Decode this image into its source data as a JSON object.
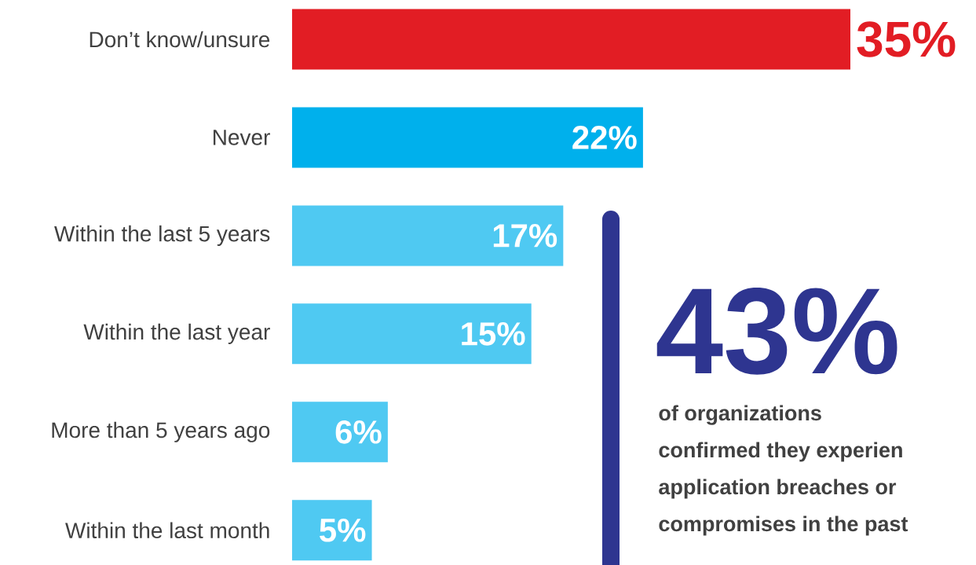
{
  "chart_data": {
    "type": "bar",
    "orientation": "horizontal",
    "categories": [
      "Don’t know/unsure",
      "Never",
      "Within the last 5 years",
      "Within the last year",
      "More than 5 years ago",
      "Within the last month"
    ],
    "values": [
      35,
      22,
      17,
      15,
      6,
      5
    ],
    "colors": [
      "#e21d24",
      "#00b0ec",
      "#4fc9f2",
      "#4fc9f2",
      "#4fc9f2",
      "#4fc9f2"
    ],
    "value_labels": [
      "35%",
      "22%",
      "17%",
      "15%",
      "6%",
      "5%"
    ],
    "annotations": [
      "43%",
      "of organizations",
      "confirmed they experien",
      "application breaches or",
      "compromises in the past"
    ]
  }
}
